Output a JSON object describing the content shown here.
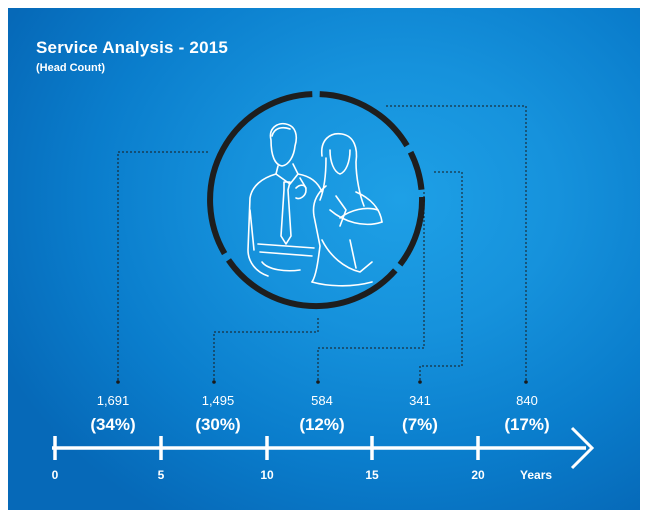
{
  "title": "Service Analysis - 2015",
  "subtitle": "(Head Count)",
  "chart_data": {
    "type": "bar",
    "title": "Service Analysis - 2015",
    "subtitle": "(Head Count)",
    "xlabel": "Years",
    "x_ticks": [
      "0",
      "5",
      "10",
      "15",
      "20"
    ],
    "categories": [
      "0-5",
      "5-10",
      "10-15",
      "15-20",
      "20+"
    ],
    "values": [
      1691,
      1495,
      584,
      341,
      840
    ],
    "value_labels": [
      "1,691",
      "1,495",
      "584",
      "341",
      "840"
    ],
    "percent_labels": [
      "(34%)",
      "(30%)",
      "(12%)",
      "(7%)",
      "(17%)"
    ],
    "percents": [
      34,
      30,
      12,
      7,
      17
    ]
  },
  "colors": {
    "background": "#0a7dcc",
    "ring": "#1a1a1a",
    "text": "#ffffff"
  },
  "icons": {
    "center": "people-illustration-icon",
    "axis_end": "arrow-right-icon"
  }
}
